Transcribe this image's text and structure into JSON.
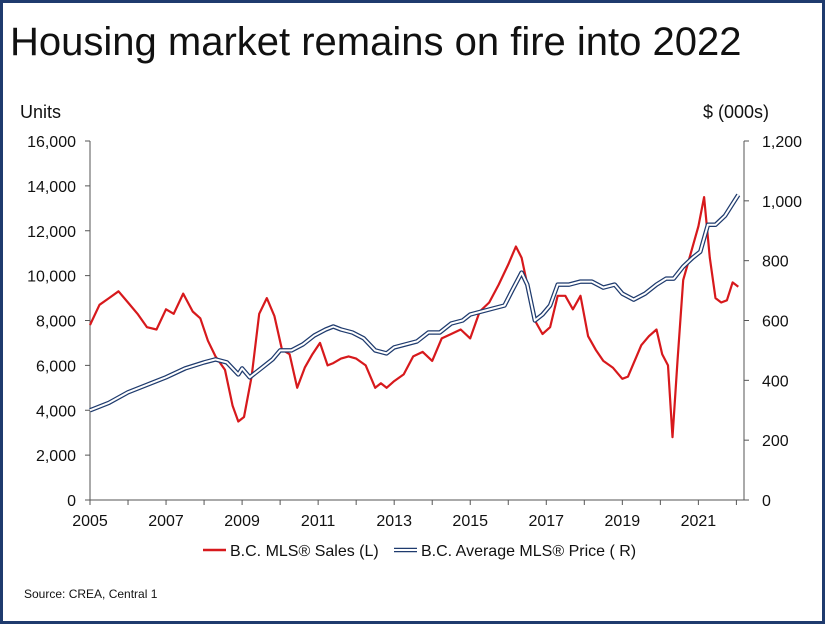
{
  "title": "Housing market remains on fire into 2022",
  "source": "Source: CREA, Central 1",
  "chart_data": {
    "type": "line",
    "y_left_label": "Units",
    "y_right_label": "$ (000s)",
    "ylim_left": [
      0,
      16000
    ],
    "ylim_right": [
      0,
      1200
    ],
    "y_left_ticks": [
      "0",
      "2,000",
      "4,000",
      "6,000",
      "8,000",
      "10,000",
      "12,000",
      "14,000",
      "16,000"
    ],
    "y_right_ticks": [
      "0",
      "200",
      "400",
      "600",
      "800",
      "1,000",
      "1,200"
    ],
    "xlim": [
      2005,
      2022.2
    ],
    "x_ticks": [
      "2005",
      "2007",
      "2009",
      "2011",
      "2013",
      "2015",
      "2017",
      "2019",
      "2021"
    ],
    "grid": false,
    "legend_position": "bottom",
    "series": [
      {
        "name": "B.C. MLS® Sales (L)",
        "axis": "left",
        "color": "#d7191c",
        "x": [
          2005.0,
          2005.25,
          2005.5,
          2005.75,
          2006.0,
          2006.25,
          2006.5,
          2006.75,
          2007.0,
          2007.2,
          2007.45,
          2007.7,
          2007.9,
          2008.1,
          2008.3,
          2008.55,
          2008.75,
          2008.9,
          2009.05,
          2009.25,
          2009.45,
          2009.65,
          2009.85,
          2010.05,
          2010.25,
          2010.45,
          2010.65,
          2010.85,
          2011.05,
          2011.25,
          2011.4,
          2011.6,
          2011.8,
          2012.0,
          2012.25,
          2012.5,
          2012.65,
          2012.8,
          2013.0,
          2013.25,
          2013.5,
          2013.75,
          2014.0,
          2014.25,
          2014.5,
          2014.75,
          2015.0,
          2015.25,
          2015.5,
          2015.75,
          2016.0,
          2016.2,
          2016.35,
          2016.5,
          2016.7,
          2016.9,
          2017.1,
          2017.3,
          2017.5,
          2017.7,
          2017.9,
          2018.1,
          2018.3,
          2018.5,
          2018.75,
          2019.0,
          2019.15,
          2019.3,
          2019.5,
          2019.7,
          2019.9,
          2020.05,
          2020.2,
          2020.32,
          2020.45,
          2020.6,
          2020.8,
          2021.0,
          2021.15,
          2021.3,
          2021.45,
          2021.6,
          2021.75,
          2021.9,
          2022.05
        ],
        "values": [
          7800,
          8700,
          9000,
          9300,
          8800,
          8300,
          7700,
          7600,
          8500,
          8300,
          9200,
          8400,
          8100,
          7100,
          6400,
          5800,
          4200,
          3500,
          3700,
          5500,
          8300,
          9000,
          8200,
          6700,
          6500,
          5000,
          5900,
          6500,
          7000,
          6000,
          6100,
          6300,
          6400,
          6300,
          6000,
          5000,
          5200,
          5000,
          5300,
          5600,
          6400,
          6600,
          6200,
          7200,
          7400,
          7600,
          7200,
          8400,
          8800,
          9600,
          10500,
          11300,
          10800,
          9600,
          8000,
          7400,
          7700,
          9100,
          9100,
          8500,
          9100,
          7300,
          6700,
          6200,
          5900,
          5400,
          5500,
          6100,
          6900,
          7300,
          7600,
          6500,
          6000,
          2800,
          6200,
          9800,
          11000,
          12200,
          13500,
          10800,
          9000,
          8800,
          8900,
          9700,
          9500
        ]
      },
      {
        "name": "B.C. Average MLS® Price ( R)",
        "axis": "right",
        "color": "#1f3b6e",
        "x": [
          2005.0,
          2005.5,
          2006.0,
          2006.5,
          2007.0,
          2007.5,
          2008.0,
          2008.3,
          2008.6,
          2008.75,
          2008.9,
          2009.0,
          2009.2,
          2009.5,
          2009.8,
          2010.0,
          2010.3,
          2010.6,
          2010.9,
          2011.2,
          2011.4,
          2011.6,
          2011.9,
          2012.2,
          2012.5,
          2012.8,
          2013.0,
          2013.3,
          2013.6,
          2013.9,
          2014.2,
          2014.5,
          2014.8,
          2015.0,
          2015.3,
          2015.6,
          2015.9,
          2016.1,
          2016.35,
          2016.5,
          2016.7,
          2016.9,
          2017.1,
          2017.3,
          2017.6,
          2017.9,
          2018.2,
          2018.5,
          2018.8,
          2019.0,
          2019.3,
          2019.6,
          2019.9,
          2020.15,
          2020.35,
          2020.6,
          2020.85,
          2021.05,
          2021.25,
          2021.45,
          2021.7,
          2021.9,
          2022.05
        ],
        "values": [
          300,
          325,
          360,
          385,
          410,
          440,
          460,
          470,
          460,
          440,
          420,
          440,
          410,
          440,
          470,
          500,
          500,
          520,
          550,
          570,
          580,
          570,
          560,
          540,
          500,
          490,
          510,
          520,
          530,
          560,
          560,
          590,
          600,
          620,
          630,
          640,
          650,
          700,
          760,
          720,
          600,
          620,
          650,
          720,
          720,
          730,
          730,
          710,
          720,
          690,
          670,
          690,
          720,
          740,
          740,
          780,
          810,
          830,
          920,
          920,
          950,
          990,
          1020
        ]
      }
    ]
  }
}
